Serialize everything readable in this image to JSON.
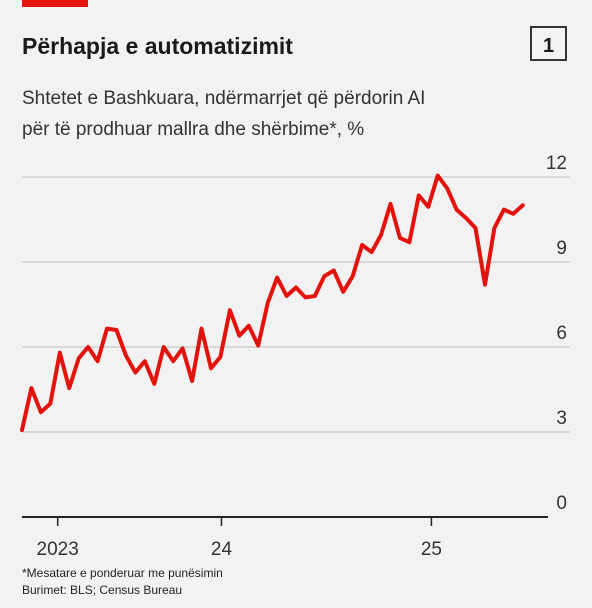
{
  "badge": "1",
  "footnote": "*Mesatare e ponderuar me punësimin",
  "source": "Burimet: BLS; Census Bureau",
  "chart_data": {
    "type": "line",
    "title": "Përhapja e automatizimit",
    "subtitle": [
      "Shtetet e Bashkuara, ndërmarrjet që përdorin AI",
      "për të prodhuar mallra dhe shërbime*, %"
    ],
    "x": [
      2023.55,
      2023.595,
      2023.64,
      2023.685,
      2023.73,
      2023.775,
      2023.82,
      2023.865,
      2023.91,
      2023.955,
      2024.0,
      2024.045,
      2024.09,
      2024.135,
      2024.18,
      2024.225,
      2024.27,
      2024.315,
      2024.36,
      2024.405,
      2024.45,
      2024.495,
      2024.54,
      2024.585,
      2024.63,
      2024.675,
      2024.72,
      2024.765,
      2024.81,
      2024.855,
      2024.9,
      2024.945,
      2024.99,
      2025.035,
      2025.08,
      2025.125,
      2025.17,
      2025.215,
      2025.26,
      2025.305,
      2025.35,
      2025.395,
      2025.44,
      2025.485,
      2025.53,
      2025.575,
      2025.62,
      2025.665,
      2025.71,
      2025.755,
      2025.8,
      2025.845,
      2025.89,
      2025.935
    ],
    "series": [
      {
        "color": "#e3120b",
        "values": [
          3.07,
          4.55,
          3.7,
          4.0,
          5.8,
          4.55,
          5.6,
          6.0,
          5.5,
          6.65,
          6.6,
          5.7,
          5.1,
          5.5,
          4.7,
          6.0,
          5.5,
          5.95,
          4.8,
          6.65,
          5.25,
          5.65,
          7.3,
          6.4,
          6.75,
          6.05,
          7.55,
          8.45,
          7.8,
          8.1,
          7.75,
          7.8,
          8.5,
          8.7,
          7.95,
          8.5,
          9.6,
          9.35,
          9.95,
          11.05,
          9.85,
          9.7,
          11.35,
          10.95,
          12.05,
          11.6,
          10.85,
          10.55,
          10.2,
          8.2,
          10.2,
          10.85,
          10.7,
          11.0
        ]
      }
    ],
    "xlim": [
      2023.55,
      2026.16
    ],
    "xticks": [
      {
        "value": 2023.72,
        "label": "2023"
      },
      {
        "value": 2024.5,
        "label": "24"
      },
      {
        "value": 2025.5,
        "label": "25"
      }
    ],
    "ylim": [
      0,
      12
    ],
    "yticks": [
      0,
      3,
      6,
      9,
      12
    ],
    "grid": true
  }
}
